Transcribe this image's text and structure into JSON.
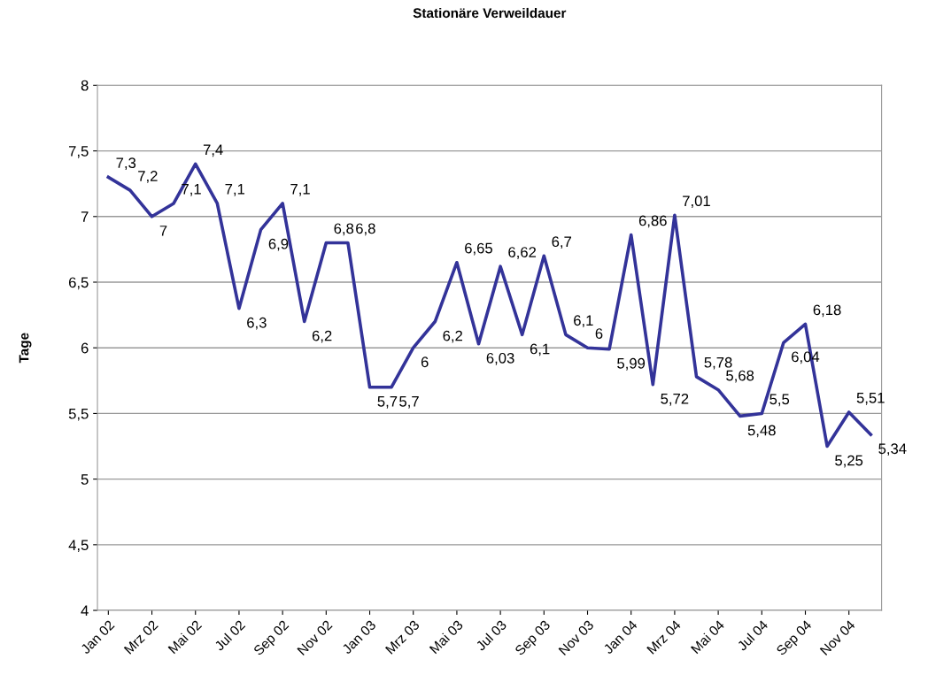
{
  "chart_data": {
    "type": "line",
    "title": "Stationäre Verweildauer",
    "ylabel": "Tage",
    "categories": [
      "Jan 02",
      null,
      "Mrz 02",
      null,
      "Mai 02",
      null,
      "Jul 02",
      null,
      "Sep 02",
      null,
      "Nov 02",
      null,
      "Jan 03",
      null,
      "Mrz 03",
      null,
      "Mai 03",
      null,
      "Jul 03",
      null,
      "Sep 03",
      null,
      "Nov 03",
      null,
      "Jan 04",
      null,
      "Mrz 04",
      null,
      "Mai 04",
      null,
      "Jul 04",
      null,
      "Sep 04",
      null,
      "Nov 04",
      null
    ],
    "series": [
      {
        "color": "#333399",
        "values": [
          7.3,
          7.2,
          7.0,
          7.1,
          7.4,
          7.1,
          6.3,
          6.9,
          7.1,
          6.2,
          6.8,
          6.8,
          5.7,
          5.7,
          6.0,
          6.2,
          6.65,
          6.03,
          6.62,
          6.1,
          6.7,
          6.1,
          6.0,
          5.99,
          6.86,
          5.72,
          7.01,
          5.78,
          5.68,
          5.48,
          5.5,
          6.04,
          6.18,
          5.25,
          5.51,
          5.34
        ],
        "value_labels": [
          "7,3",
          "7,2",
          "7",
          "7,1",
          "7,4",
          "7,1",
          "6,3",
          "6,9",
          "7,1",
          "6,2",
          "6,8",
          "6,8",
          "5,7",
          "5,7",
          "6",
          "6,2",
          "6,65",
          "6,03",
          "6,62",
          "6,1",
          "6,7",
          "6,1",
          "6",
          "5,99",
          "6,86",
          "5,72",
          "7,01",
          "5,78",
          "5,68",
          "5,48",
          "5,5",
          "6,04",
          "6,18",
          "5,25",
          "5,51",
          "5,34"
        ]
      }
    ],
    "ylim": [
      4,
      8
    ],
    "yticks": [
      4,
      {
        "value": 4.5,
        "label": "4,5"
      },
      5,
      {
        "value": 5.5,
        "label": "5,5"
      },
      6,
      {
        "value": 6.5,
        "label": "6,5"
      },
      7,
      {
        "value": 7.5,
        "label": "7,5"
      },
      8
    ],
    "grid": "y",
    "marker": "none",
    "line_style": "solid",
    "legend": false
  }
}
